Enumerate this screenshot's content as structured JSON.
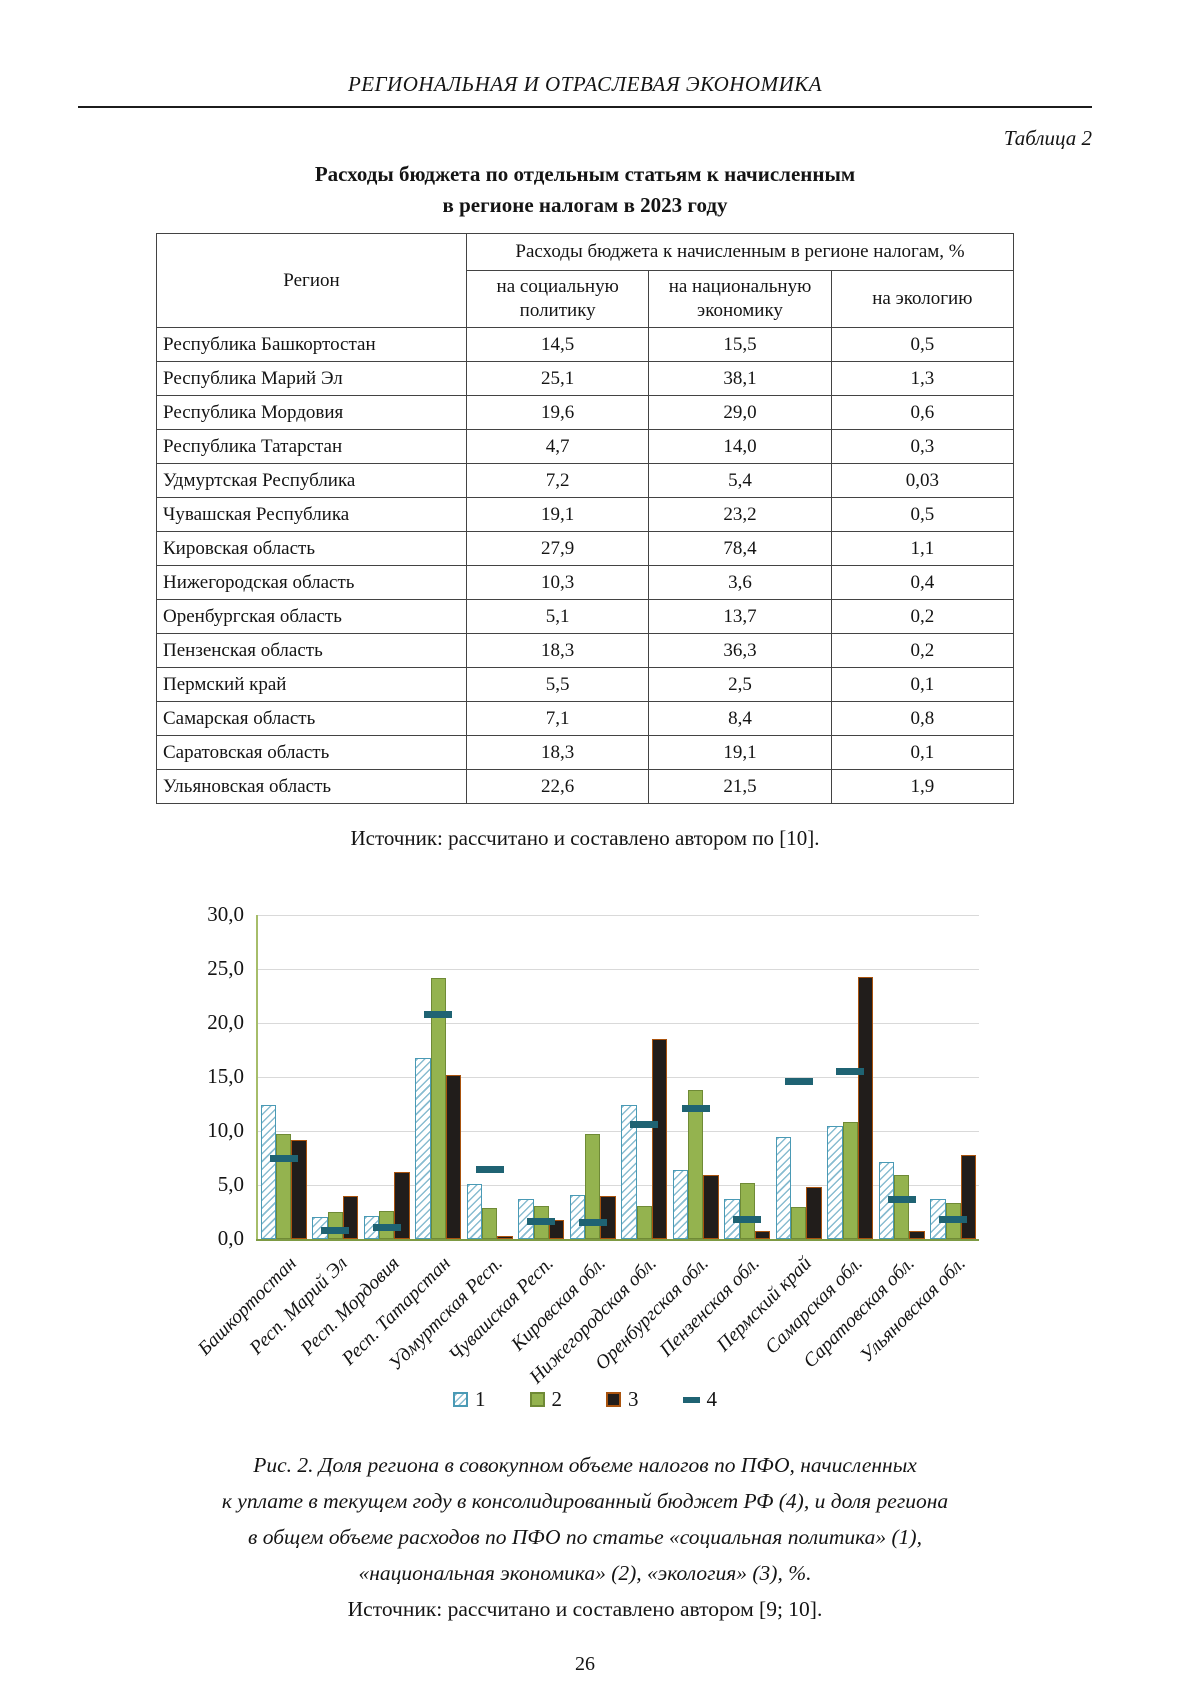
{
  "page": {
    "header": "РЕГИОНАЛЬНАЯ И ОТРАСЛЕВАЯ ЭКОНОМИКА",
    "page_number": "26"
  },
  "table": {
    "label": "Таблица 2",
    "title_line1": "Расходы бюджета по отдельным статьям к начисленным",
    "title_line2": "в регионе налогам в 2023 году",
    "col_region": "Регион",
    "col_group": "Расходы бюджета к начисленным в регионе налогам, %",
    "col_sub": [
      "на социальную политику",
      "на национальную экономику",
      "на экологию"
    ],
    "rows": [
      {
        "region": "Республика Башкортостан",
        "values": [
          "14,5",
          "15,5",
          "0,5"
        ]
      },
      {
        "region": "Республика Марий Эл",
        "values": [
          "25,1",
          "38,1",
          "1,3"
        ]
      },
      {
        "region": "Республика Мордовия",
        "values": [
          "19,6",
          "29,0",
          "0,6"
        ]
      },
      {
        "region": "Республика Татарстан",
        "values": [
          "4,7",
          "14,0",
          "0,3"
        ]
      },
      {
        "region": "Удмуртская Республика",
        "values": [
          "7,2",
          "5,4",
          "0,03"
        ]
      },
      {
        "region": "Чувашская Республика",
        "values": [
          "19,1",
          "23,2",
          "0,5"
        ]
      },
      {
        "region": "Кировская область",
        "values": [
          "27,9",
          "78,4",
          "1,1"
        ]
      },
      {
        "region": "Нижегородская область",
        "values": [
          "10,3",
          "3,6",
          "0,4"
        ]
      },
      {
        "region": "Оренбургская область",
        "values": [
          "5,1",
          "13,7",
          "0,2"
        ]
      },
      {
        "region": "Пензенская область",
        "values": [
          "18,3",
          "36,3",
          "0,2"
        ]
      },
      {
        "region": "Пермский край",
        "values": [
          "5,5",
          "2,5",
          "0,1"
        ]
      },
      {
        "region": "Самарская область",
        "values": [
          "7,1",
          "8,4",
          "0,8"
        ]
      },
      {
        "region": "Саратовская область",
        "values": [
          "18,3",
          "19,1",
          "0,1"
        ]
      },
      {
        "region": "Ульяновская область",
        "values": [
          "22,6",
          "21,5",
          "1,9"
        ]
      }
    ],
    "source": "Источник: рассчитано и составлено автором по [10]."
  },
  "chart_data": {
    "type": "bar",
    "title": "",
    "xlabel": "",
    "ylabel": "",
    "ylim": [
      0,
      30
    ],
    "ytick_step": 5,
    "ytick_labels": [
      "0,0",
      "5,0",
      "10,0",
      "15,0",
      "20,0",
      "25,0",
      "30,0"
    ],
    "grid": true,
    "legend_position": "bottom",
    "categories": [
      "Башкортостан",
      "Респ. Марий Эл",
      "Респ. Мордовия",
      "Респ. Татарстан",
      "Удмуртская Респ.",
      "Чувашская Респ.",
      "Кировская обл.",
      "Нижегородская обл.",
      "Оренбургская обл.",
      "Пензенская обл.",
      "Пермский край",
      "Самарская обл.",
      "Саратовская обл.",
      "Ульяновская обл."
    ],
    "series": [
      {
        "name": "1",
        "style": "bar-hatched",
        "values": [
          12.4,
          2.0,
          2.1,
          16.8,
          5.1,
          3.7,
          4.1,
          12.4,
          6.4,
          3.7,
          9.4,
          10.5,
          7.1,
          3.7
        ]
      },
      {
        "name": "2",
        "style": "bar-green",
        "values": [
          9.7,
          2.5,
          2.6,
          24.2,
          2.9,
          3.1,
          9.7,
          3.1,
          13.8,
          5.2,
          3.0,
          10.8,
          5.9,
          3.3
        ]
      },
      {
        "name": "3",
        "style": "bar-dark",
        "values": [
          9.2,
          4.0,
          6.2,
          15.2,
          0.3,
          1.8,
          4.0,
          18.5,
          5.9,
          0.7,
          4.8,
          24.3,
          0.7,
          7.8
        ]
      },
      {
        "name": "4",
        "style": "dash-teal",
        "values": [
          7.5,
          0.8,
          1.1,
          20.8,
          6.4,
          1.6,
          1.5,
          10.6,
          12.1,
          1.8,
          14.6,
          15.5,
          3.7,
          1.8
        ]
      }
    ],
    "colors": {
      "series1_border": "#4a9ab5",
      "series1_hatch": "#9cc3d4",
      "series2_fill": "#94b34f",
      "series2_border": "#6f8a36",
      "series3_fill": "#211d1b",
      "series3_border": "#a9530e",
      "series4_fill": "#1f6373",
      "gridline": "#d9d9d9",
      "axis": "#7d9a43"
    }
  },
  "figure": {
    "caption_lines": [
      "Рис. 2. Доля региона в совокупном объеме налогов по ПФО, начисленных",
      "к уплате в текущем году в консолидированный бюджет РФ (4), и доля региона",
      "в общем объеме расходов по ПФО по статье «социальная политика» (1),",
      "«национальная экономика» (2), «экология» (3), %."
    ],
    "source": "Источник: рассчитано и составлено автором [9; 10]."
  }
}
